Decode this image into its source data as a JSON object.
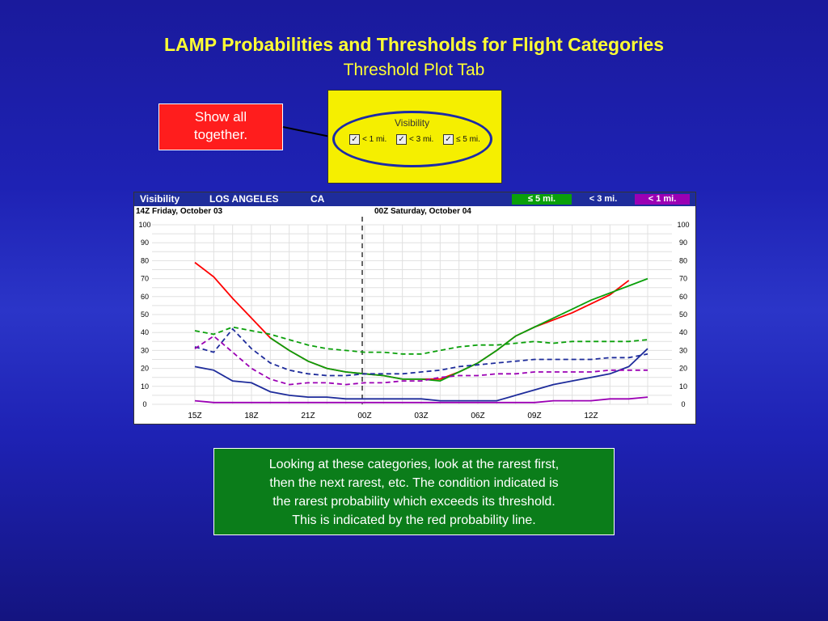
{
  "title": "LAMP Probabilities and Thresholds for Flight Categories",
  "subtitle": "Threshold Plot Tab",
  "callout": {
    "line1": "Show all",
    "line2": "together."
  },
  "visibility_panel": {
    "label": "Visibility",
    "checkboxes": [
      {
        "label": "< 1 mi.",
        "checked": true
      },
      {
        "label": "< 3 mi.",
        "checked": true
      },
      {
        "label": "≤ 5 mi.",
        "checked": true
      }
    ]
  },
  "plot": {
    "header": {
      "element": "Visibility",
      "station": "LOS ANGELES",
      "state": "CA"
    },
    "legend": [
      {
        "label": "≤ 5 mi.",
        "color": "#0aa00a"
      },
      {
        "label": "< 3 mi.",
        "color": "#1e2c9b"
      },
      {
        "label": "< 1 mi.",
        "color": "#9b00b4"
      }
    ],
    "date_left": "14Z Friday, October 03",
    "date_right": "00Z Saturday, October 04"
  },
  "chart_data": {
    "type": "line",
    "x": [
      "15Z",
      "16Z",
      "17Z",
      "18Z",
      "19Z",
      "20Z",
      "21Z",
      "22Z",
      "23Z",
      "00Z",
      "01Z",
      "02Z",
      "03Z",
      "04Z",
      "05Z",
      "06Z",
      "07Z",
      "08Z",
      "09Z",
      "10Z",
      "11Z",
      "12Z",
      "13Z",
      "14Z",
      "15Z"
    ],
    "x_tick_labels": [
      "15Z",
      "18Z",
      "21Z",
      "00Z",
      "03Z",
      "06Z",
      "09Z",
      "12Z"
    ],
    "y_ticks": [
      0,
      10,
      20,
      30,
      40,
      50,
      60,
      70,
      80,
      90,
      100
    ],
    "ylim": [
      0,
      100
    ],
    "grid": true,
    "series": [
      {
        "name": "< 1 mi. probability",
        "color": "#ff0000",
        "dash": false,
        "values": [
          79,
          71,
          59,
          48,
          37,
          30,
          24,
          20,
          18,
          17,
          16,
          14,
          14,
          14,
          18,
          23,
          30,
          38,
          43,
          47,
          51,
          56,
          61,
          69,
          null
        ]
      },
      {
        "name": "< 3 mi. probability",
        "color": "#0aa00a",
        "dash": false,
        "values": [
          null,
          null,
          null,
          null,
          null,
          null,
          null,
          null,
          null,
          null,
          null,
          null,
          null,
          null,
          null,
          null,
          null,
          null,
          null,
          null,
          null,
          null,
          null,
          null,
          70
        ]
      },
      {
        "name": "≤ 5 mi. probability",
        "color": "#0aa00a",
        "dash": false,
        "values": [
          null,
          null,
          null,
          null,
          null,
          null,
          null,
          null,
          null,
          null,
          null,
          null,
          null,
          null,
          null,
          null,
          null,
          null,
          null,
          null,
          null,
          null,
          null,
          null,
          null
        ]
      },
      {
        "name": "≤ 5 mi. probability (green solid)",
        "color": "#0aa00a",
        "dash": false,
        "values": [
          null,
          null,
          null,
          null,
          37,
          30,
          24,
          20,
          18,
          17,
          16,
          14,
          14,
          13,
          18,
          23,
          30,
          38,
          43,
          48,
          53,
          58,
          62,
          66,
          70
        ]
      },
      {
        "name": "≤ 5 mi. threshold",
        "color": "#0aa00a",
        "dash": true,
        "values": [
          41,
          39,
          43,
          41,
          39,
          36,
          33,
          31,
          30,
          29,
          29,
          28,
          28,
          30,
          32,
          33,
          33,
          34,
          35,
          34,
          35,
          35,
          35,
          35,
          36
        ]
      },
      {
        "name": "< 3 mi. probability (blue)",
        "color": "#1e2c9b",
        "dash": false,
        "values": [
          21,
          19,
          13,
          12,
          7,
          5,
          4,
          4,
          3,
          3,
          3,
          3,
          3,
          2,
          2,
          2,
          2,
          5,
          8,
          11,
          13,
          15,
          17,
          21,
          31
        ]
      },
      {
        "name": "< 3 mi. threshold",
        "color": "#1e2c9b",
        "dash": true,
        "values": [
          32,
          29,
          42,
          31,
          23,
          19,
          17,
          16,
          16,
          17,
          17,
          17,
          18,
          19,
          21,
          22,
          23,
          24,
          25,
          25,
          25,
          25,
          26,
          26,
          28
        ]
      },
      {
        "name": "< 1 mi. probability (purple)",
        "color": "#9b00b4",
        "dash": false,
        "values": [
          2,
          1,
          1,
          1,
          1,
          1,
          1,
          1,
          1,
          1,
          1,
          1,
          1,
          1,
          1,
          1,
          1,
          1,
          1,
          2,
          2,
          2,
          3,
          3,
          4
        ]
      },
      {
        "name": "< 1 mi. threshold",
        "color": "#9b00b4",
        "dash": true,
        "values": [
          31,
          38,
          29,
          20,
          14,
          11,
          12,
          12,
          11,
          12,
          12,
          13,
          13,
          15,
          16,
          16,
          17,
          17,
          18,
          18,
          18,
          18,
          19,
          19,
          19
        ]
      }
    ],
    "vertical_marker_x": "00Z"
  },
  "note": {
    "line1": "Looking at these categories, look at the rarest first,",
    "line2": "then the next rarest, etc.  The condition indicated is",
    "line3": "the rarest probability which exceeds its threshold.",
    "line4": "This is indicated by the red probability line."
  }
}
